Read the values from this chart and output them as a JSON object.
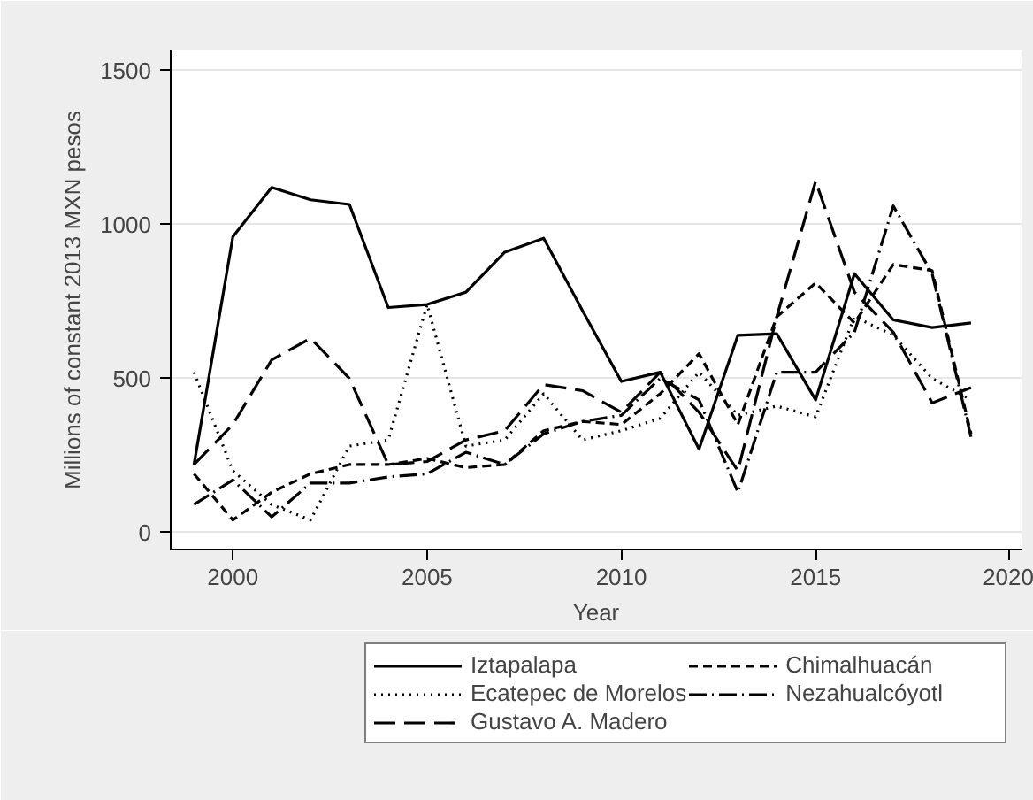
{
  "chart_data": {
    "type": "line",
    "xlabel": "Year",
    "ylabel": "Millions of constant 2013 MXN pesos",
    "x": [
      1999,
      2000,
      2001,
      2002,
      2003,
      2004,
      2005,
      2006,
      2007,
      2008,
      2009,
      2010,
      2011,
      2012,
      2013,
      2014,
      2015,
      2016,
      2017,
      2018,
      2019
    ],
    "xlim": [
      1998.4,
      2020.3
    ],
    "xticks": [
      2000,
      2005,
      2010,
      2015,
      2020
    ],
    "ylim": [
      -56,
      1565
    ],
    "yticks": [
      0,
      500,
      1000,
      1500
    ],
    "grid": "y",
    "legend": "bottom",
    "series": [
      {
        "name": "Iztapalapa",
        "color": "#000000",
        "line_style": "solid",
        "values": [
          220,
          960,
          1120,
          1080,
          1065,
          730,
          740,
          780,
          910,
          955,
          720,
          490,
          520,
          270,
          640,
          645,
          430,
          840,
          690,
          665,
          680
        ]
      },
      {
        "name": "Ecatepec de Morelos",
        "color": "#000000",
        "line_style": "dotted",
        "values": [
          520,
          200,
          90,
          40,
          280,
          300,
          740,
          280,
          300,
          450,
          300,
          330,
          370,
          520,
          380,
          410,
          375,
          700,
          640,
          500,
          430
        ]
      },
      {
        "name": "Gustavo A. Madero",
        "color": "#000000",
        "line_style": "longdash",
        "values": [
          220,
          350,
          560,
          630,
          500,
          220,
          230,
          300,
          330,
          480,
          460,
          390,
          520,
          390,
          200,
          700,
          1140,
          780,
          650,
          420,
          470
        ]
      },
      {
        "name": "Chimalhuacán",
        "color": "#000000",
        "line_style": "dashed",
        "values": [
          190,
          40,
          130,
          190,
          220,
          220,
          240,
          210,
          220,
          330,
          360,
          350,
          450,
          580,
          350,
          700,
          810,
          680,
          870,
          850,
          320
        ]
      },
      {
        "name": "Nezahualcóyotl",
        "color": "#000000",
        "line_style": "dashdot",
        "values": [
          90,
          170,
          50,
          160,
          160,
          180,
          190,
          260,
          220,
          320,
          360,
          380,
          500,
          430,
          130,
          520,
          520,
          650,
          1060,
          840,
          310
        ]
      }
    ]
  }
}
